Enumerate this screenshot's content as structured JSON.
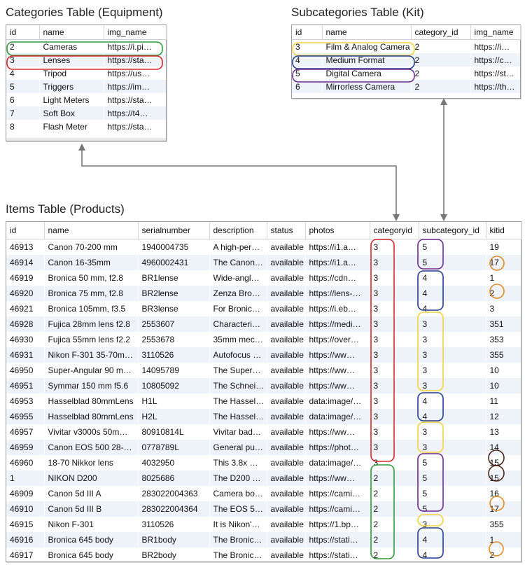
{
  "categories": {
    "caption": "Categories Table (Equipment)",
    "columns": [
      "id",
      "name",
      "img_name"
    ],
    "rows": [
      [
        "2",
        "Cameras",
        "https://i.pi…"
      ],
      [
        "3",
        "Lenses",
        "https://sta…"
      ],
      [
        "4",
        "Tripod",
        "https://us…"
      ],
      [
        "5",
        "Triggers",
        "https://im…"
      ],
      [
        "6",
        "Light Meters",
        "https://sta…"
      ],
      [
        "7",
        "Soft Box",
        "https://t4…"
      ],
      [
        "8",
        "Flash Meter",
        "https://sta…"
      ]
    ]
  },
  "subcategories": {
    "caption": "Subcategories Table (Kit)",
    "columns": [
      "id",
      "name",
      "category_id",
      "img_name"
    ],
    "rows": [
      [
        "3",
        "Film & Analog Camera",
        "2",
        "https://i…"
      ],
      [
        "4",
        "Medium Format",
        "2",
        "https://c…"
      ],
      [
        "5",
        "Digital Camera",
        "2",
        "https://st…"
      ],
      [
        "6",
        "Mirrorless Camera",
        "2",
        "https://th…"
      ]
    ]
  },
  "items": {
    "caption": "Items Table (Products)",
    "columns": [
      "id",
      "name",
      "serialnumber",
      "description",
      "status",
      "photos",
      "categoryid",
      "subcategory_id",
      "kitid"
    ],
    "rows": [
      [
        "46913",
        "Canon 70-200 mm",
        "1940004735",
        "A high-per…",
        "available",
        "https://i1.a…",
        "3",
        "5",
        "19"
      ],
      [
        "46914",
        "Canon 16-35mm",
        "4960002431",
        "The Canon…",
        "available",
        "https://i1.a…",
        "3",
        "5",
        "17"
      ],
      [
        "46919",
        "Bronica 50 mm, f2.8",
        "BR1lense",
        "Wide-angl…",
        "available",
        "https://cdn…",
        "3",
        "4",
        "1"
      ],
      [
        "46920",
        "Bronica 75 mm, f2.8",
        "BR2lense",
        "Zenza Bro…",
        "available",
        "https://lens-…",
        "3",
        "4",
        "2"
      ],
      [
        "46921",
        "Bronica 105mm, f3.5",
        "BR3lense",
        "For Bronic…",
        "available",
        "https://i.eb…",
        "3",
        "4",
        "3"
      ],
      [
        "46928",
        "Fujica 28mm lens f2.8",
        "2553607",
        "Characteri…",
        "available",
        "https://medi…",
        "3",
        "3",
        "351"
      ],
      [
        "46930",
        "Fujica 55mm lens f2.2",
        "2553678",
        "35mm mec…",
        "available",
        "https://over…",
        "3",
        "3",
        "353"
      ],
      [
        "46931",
        "Nikon F-301 35-70m…",
        "3110526",
        "Autofocus …",
        "available",
        "https://ww…",
        "3",
        "3",
        "355"
      ],
      [
        "46950",
        "Super-Angular 90 m…",
        "14095789",
        "The Super…",
        "available",
        "https://ww…",
        "3",
        "3",
        "10"
      ],
      [
        "46951",
        "Symmar 150 mm f5.6",
        "10805092",
        "The Schnei…",
        "available",
        "https://ww…",
        "3",
        "3",
        "10"
      ],
      [
        "46953",
        "Hasselblad 80mmLens",
        "H1L",
        "The Hassel…",
        "available",
        "data:image/…",
        "3",
        "4",
        "11"
      ],
      [
        "46955",
        "Hasselblad 80mmLens",
        "H2L",
        "The Hassel…",
        "available",
        "data:image/…",
        "3",
        "4",
        "12"
      ],
      [
        "46957",
        "Vivitar v3000s 50m…",
        "80910814L",
        "Vivitar bad…",
        "available",
        "https://ww…",
        "3",
        "3",
        "13"
      ],
      [
        "46959",
        "Canon EOS 500 28-…",
        "0778789L",
        "General pu…",
        "available",
        "https://phot…",
        "3",
        "3",
        "14"
      ],
      [
        "46960",
        "18-70 Nikkor lens",
        "4032950",
        "This 3.8x …",
        "available",
        "data:image/…",
        "3",
        "5",
        "15"
      ],
      [
        "1",
        "NIKON D200",
        "8025686",
        "The D200 …",
        "available",
        "https://ww…",
        "2",
        "5",
        "15"
      ],
      [
        "46909",
        "Canon 5d III A",
        "283022004363",
        "Camera bo…",
        "available",
        "https://cami…",
        "2",
        "5",
        "16"
      ],
      [
        "46910",
        "Canon 5d III B",
        "283022004364",
        "The EOS 5…",
        "available",
        "https://cami…",
        "2",
        "5",
        "17"
      ],
      [
        "46915",
        "Nikon F-301",
        "3110526",
        "It is Nikon'…",
        "available",
        "https://1.bp…",
        "2",
        "3",
        "355"
      ],
      [
        "46916",
        "Bronica 645 body",
        "BR1body",
        "The Bronic…",
        "available",
        "https://stati…",
        "2",
        "4",
        "1"
      ],
      [
        "46917",
        "Bronica 645 body",
        "BR2body",
        "The Bronic…",
        "available",
        "https://stati…",
        "2",
        "4",
        "2"
      ]
    ]
  },
  "colors": {
    "cameras": "#2e9a3a",
    "lenses": "#d42a2a",
    "film_analog": "#f2d23a",
    "medium_format": "#233b8f",
    "digital": "#6b2a8e",
    "kit_orange": "#e08a2a",
    "kit_dark": "#4a2418",
    "arrow": "#777777"
  }
}
